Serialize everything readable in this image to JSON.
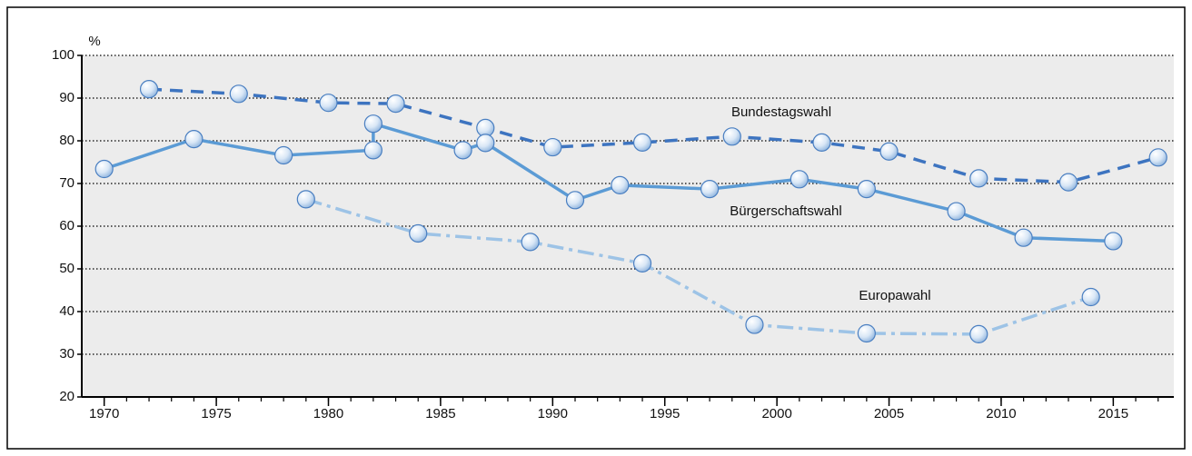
{
  "chart_data": {
    "type": "line",
    "y_unit": "%",
    "xlim": [
      1969,
      2017.7
    ],
    "ylim": [
      20,
      100
    ],
    "xticks": [
      1970,
      1975,
      1980,
      1985,
      1990,
      1995,
      2000,
      2005,
      2010,
      2015
    ],
    "xminorticks": [
      1970,
      1971,
      1972,
      1973,
      1974,
      1975,
      1976,
      1977,
      1978,
      1979,
      1980,
      1981,
      1982,
      1983,
      1984,
      1985,
      1986,
      1987,
      1988,
      1989,
      1990,
      1991,
      1992,
      1993,
      1994,
      1995,
      1996,
      1997,
      1998,
      1999,
      2000,
      2001,
      2002,
      2003,
      2004,
      2005,
      2006,
      2007,
      2008,
      2009,
      2010,
      2011,
      2012,
      2013,
      2014,
      2015,
      2016,
      2017
    ],
    "yticks": [
      20,
      30,
      40,
      50,
      60,
      70,
      80,
      90,
      100
    ],
    "grid": true,
    "series": [
      {
        "name": "Bundestagswahl",
        "color": "#3d74c0",
        "dash": "dashed",
        "x": [
          1972,
          1976,
          1980,
          1983,
          1987,
          1990,
          1994,
          1998,
          2002,
          2005,
          2009,
          2013,
          2017
        ],
        "values": [
          92.1,
          91.0,
          88.9,
          88.7,
          83.0,
          78.5,
          79.6,
          81.0,
          79.6,
          77.5,
          71.2,
          70.3,
          76.1
        ]
      },
      {
        "name": "Bürgerschaftswahl",
        "color": "#5b9bd5",
        "dash": "solid",
        "x": [
          1970,
          1974,
          1978,
          1982,
          1982,
          1986,
          1987,
          1991,
          1993,
          1997,
          2001,
          2004,
          2008,
          2011,
          2015
        ],
        "values": [
          73.4,
          80.4,
          76.6,
          77.8,
          84.0,
          77.8,
          79.5,
          66.1,
          69.6,
          68.7,
          71.0,
          68.7,
          63.5,
          57.3,
          56.5
        ]
      },
      {
        "name": "Europawahl",
        "color": "#9dc3e6",
        "dash": "dashdot",
        "x": [
          1979,
          1984,
          1989,
          1994,
          1999,
          2004,
          2009,
          2014
        ],
        "values": [
          66.3,
          58.3,
          56.3,
          51.3,
          36.9,
          34.9,
          34.7,
          43.4
        ]
      }
    ]
  }
}
